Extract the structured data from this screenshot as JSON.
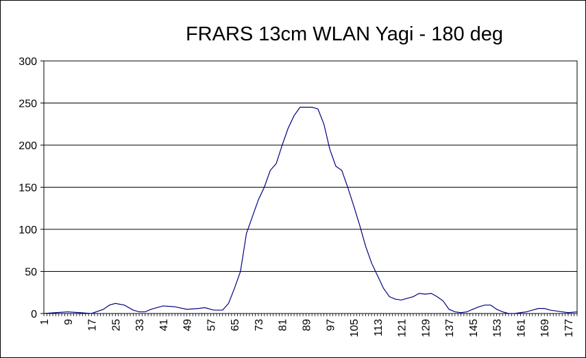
{
  "chart_data": {
    "type": "line",
    "title": "FRARS 13cm WLAN Yagi - 180 deg",
    "xlabel": "",
    "ylabel": "",
    "ylim": [
      0,
      300
    ],
    "yticks": [
      0,
      50,
      100,
      150,
      200,
      250,
      300
    ],
    "xlim": [
      1,
      180
    ],
    "xtick_labels": [
      "1",
      "9",
      "17",
      "25",
      "33",
      "41",
      "49",
      "57",
      "65",
      "73",
      "81",
      "89",
      "97",
      "105",
      "113",
      "121",
      "129",
      "137",
      "145",
      "153",
      "161",
      "169",
      "177"
    ],
    "grid": true,
    "legend": "none",
    "line_color": "#000080",
    "series": [
      {
        "x": [
          1,
          5,
          9,
          13,
          17,
          21,
          23,
          25,
          28,
          31,
          33,
          35,
          37,
          41,
          45,
          49,
          53,
          55,
          58,
          61,
          63,
          65,
          67,
          69,
          71,
          73,
          75,
          77,
          79,
          81,
          83,
          85,
          87,
          89,
          91,
          93,
          95,
          97,
          99,
          101,
          103,
          105,
          107,
          109,
          111,
          113,
          115,
          117,
          119,
          121,
          123,
          125,
          127,
          129,
          131,
          133,
          135,
          137,
          139,
          141,
          143,
          145,
          147,
          149,
          151,
          153,
          155,
          157,
          159,
          161,
          163,
          165,
          167,
          169,
          171,
          173,
          175,
          177,
          180
        ],
        "y": [
          0,
          1,
          2,
          1,
          0,
          5,
          10,
          12,
          10,
          4,
          2,
          2,
          5,
          9,
          8,
          5,
          6,
          7,
          4,
          4,
          12,
          30,
          50,
          95,
          115,
          135,
          150,
          170,
          178,
          200,
          220,
          235,
          245,
          245,
          245,
          243,
          225,
          195,
          175,
          170,
          150,
          128,
          105,
          80,
          60,
          45,
          30,
          20,
          17,
          16,
          18,
          20,
          24,
          23,
          24,
          20,
          15,
          5,
          2,
          1,
          2,
          5,
          8,
          10,
          10,
          5,
          2,
          0,
          0,
          1,
          2,
          4,
          6,
          6,
          4,
          3,
          2,
          1,
          2
        ]
      }
    ]
  }
}
